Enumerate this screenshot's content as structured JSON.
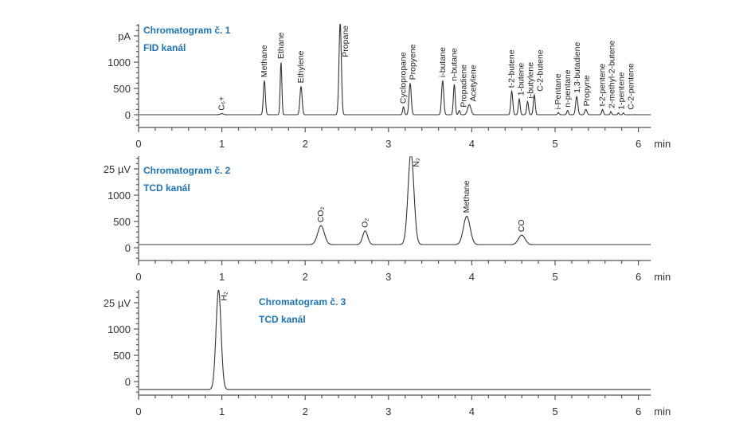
{
  "chart_data": [
    {
      "type": "line",
      "title": "Chromatogram č. 1",
      "subtitle": "FID kanál",
      "xlabel": "min",
      "ylabel": "pA",
      "xlim": [
        0,
        6.15
      ],
      "ylim": [
        -250,
        1750
      ],
      "x_ticks": [
        "0",
        "1",
        "2",
        "3",
        "4",
        "5",
        "6"
      ],
      "y_ticks": [
        "0",
        "500",
        "1000"
      ],
      "grid": false,
      "baseline": 0,
      "peaks": [
        {
          "name": "C₆+",
          "rt": 1.0,
          "height": 20,
          "width": 0.02
        },
        {
          "name": "Methane",
          "rt": 1.51,
          "height": 650,
          "width": 0.012
        },
        {
          "name": "Ethane",
          "rt": 1.71,
          "height": 1000,
          "width": 0.01
        },
        {
          "name": "Ethylene",
          "rt": 1.95,
          "height": 540,
          "width": 0.013
        },
        {
          "name": "Propane",
          "rt": 2.42,
          "height": 1750,
          "width": 0.014,
          "clipped": true
        },
        {
          "name": "Cyclopropane",
          "rt": 3.18,
          "height": 150,
          "width": 0.01
        },
        {
          "name": "Propyene",
          "rt": 3.26,
          "height": 600,
          "width": 0.013
        },
        {
          "name": "i-butane",
          "rt": 3.65,
          "height": 650,
          "width": 0.013
        },
        {
          "name": "n-butane",
          "rt": 3.79,
          "height": 580,
          "width": 0.011
        },
        {
          "name": "Propadiene",
          "rt": 3.85,
          "height": 80,
          "width": 0.01
        },
        {
          "name": "Acetylene",
          "rt": 3.97,
          "height": 190,
          "width": 0.02
        },
        {
          "name": "t-2-butene",
          "rt": 4.48,
          "height": 450,
          "width": 0.012
        },
        {
          "name": "1-butene",
          "rt": 4.57,
          "height": 300,
          "width": 0.011
        },
        {
          "name": "i-butylene",
          "rt": 4.67,
          "height": 250,
          "width": 0.011
        },
        {
          "name": "C-2-butene",
          "rt": 4.75,
          "height": 380,
          "width": 0.011
        },
        {
          "name": "i-Pentane",
          "rt": 5.04,
          "height": 40,
          "width": 0.01
        },
        {
          "name": "n-pentane",
          "rt": 5.15,
          "height": 80,
          "width": 0.01
        },
        {
          "name": "1,3-butadiene",
          "rt": 5.26,
          "height": 350,
          "width": 0.013
        },
        {
          "name": "Propyne",
          "rt": 5.37,
          "height": 100,
          "width": 0.013
        },
        {
          "name": "t-2-pentene",
          "rt": 5.57,
          "height": 100,
          "width": 0.01
        },
        {
          "name": "2-methyl-2-butene",
          "rt": 5.67,
          "height": 60,
          "width": 0.008
        },
        {
          "name": "1-pentene",
          "rt": 5.76,
          "height": 35,
          "width": 0.008
        },
        {
          "name": "C-2-pentene",
          "rt": 5.82,
          "height": 35,
          "width": 0.008
        }
      ]
    },
    {
      "type": "line",
      "title": "Chromatogram č. 2",
      "subtitle": "TCD kanál",
      "xlabel": "min",
      "ylabel": "25 µV",
      "xlim": [
        0,
        6.15
      ],
      "ylim": [
        -250,
        1750
      ],
      "x_ticks": [
        "0",
        "1",
        "2",
        "3",
        "4",
        "5",
        "6"
      ],
      "y_ticks": [
        "0",
        "500",
        "1000"
      ],
      "grid": false,
      "baseline": 60,
      "peaks": [
        {
          "name": "CO₂",
          "rt": 2.19,
          "height": 360,
          "width": 0.04
        },
        {
          "name": "O₂",
          "rt": 2.72,
          "height": 260,
          "width": 0.03
        },
        {
          "name": "N₂",
          "rt": 3.27,
          "height": 1750,
          "width": 0.035,
          "clipped": true
        },
        {
          "name": "Methane",
          "rt": 3.94,
          "height": 540,
          "width": 0.04
        },
        {
          "name": "CO",
          "rt": 4.6,
          "height": 180,
          "width": 0.04
        }
      ]
    },
    {
      "type": "line",
      "title": "Chromatogram č. 3",
      "subtitle": "TCD kanál",
      "xlabel": "min",
      "ylabel": "25 µV",
      "xlim": [
        0,
        6.15
      ],
      "ylim": [
        -250,
        1750
      ],
      "x_ticks": [
        "0",
        "1",
        "2",
        "3",
        "4",
        "5",
        "6"
      ],
      "y_ticks": [
        "0",
        "500",
        "1000"
      ],
      "grid": false,
      "baseline": -150,
      "peaks": [
        {
          "name": "H₂",
          "rt": 0.96,
          "height": 1900,
          "width": 0.03,
          "clipped": true
        }
      ]
    }
  ]
}
